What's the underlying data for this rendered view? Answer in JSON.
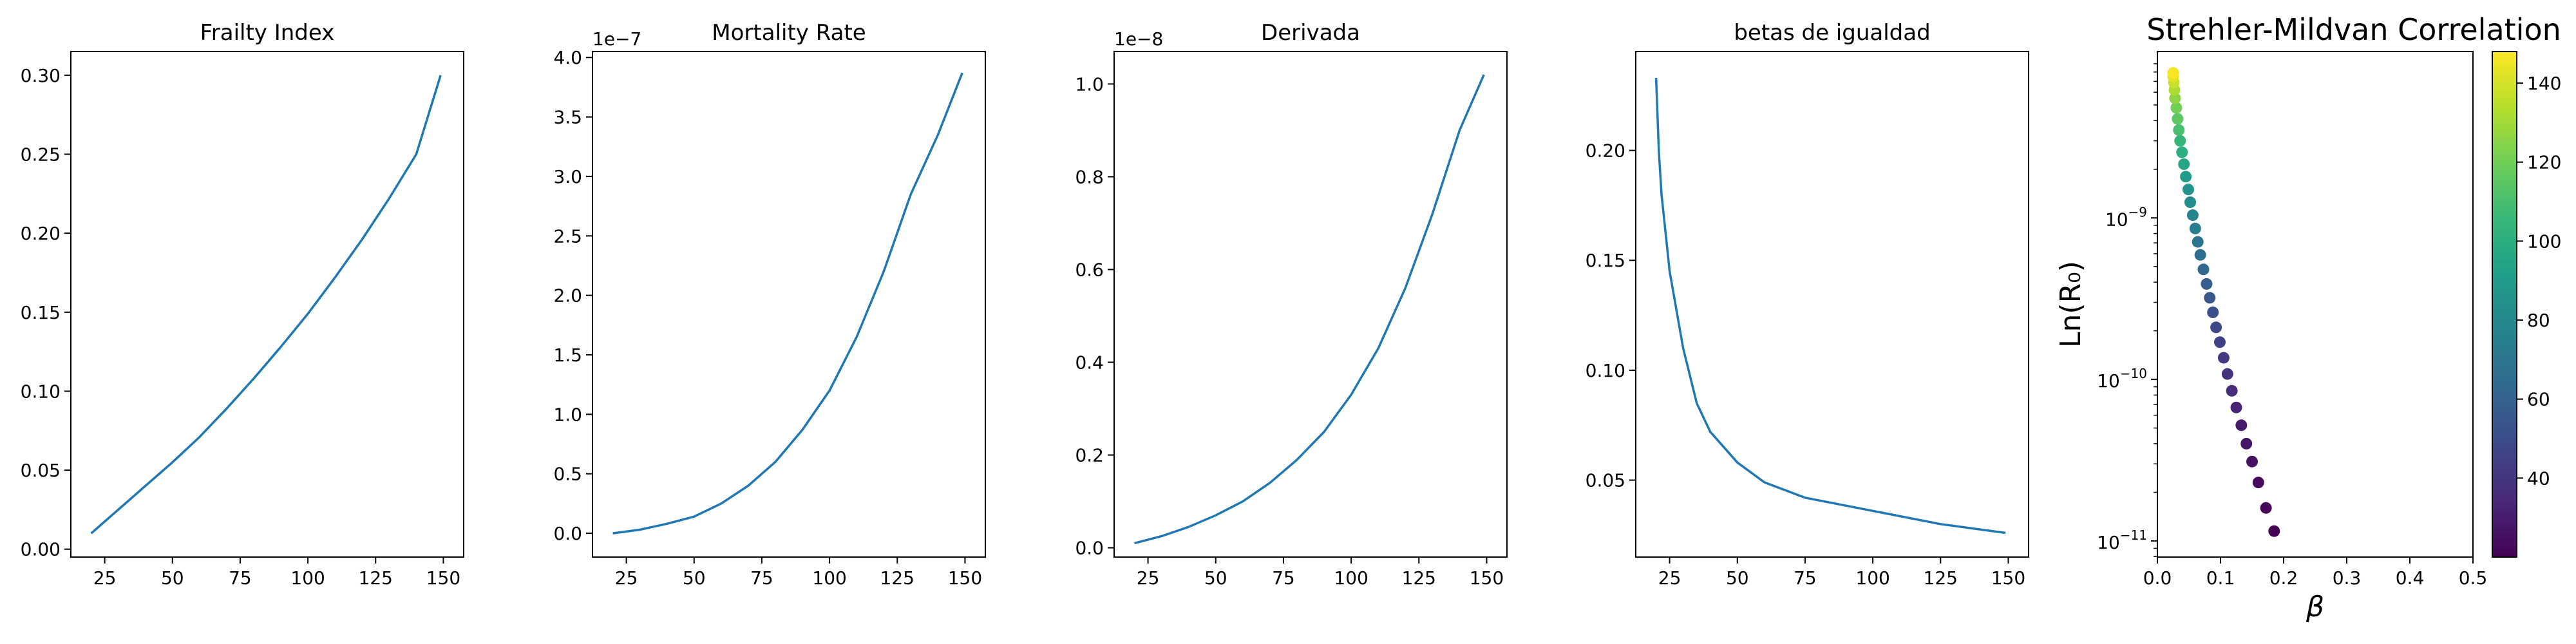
{
  "chart_data": [
    {
      "type": "line",
      "title": "Frailty Index",
      "xlabel": "",
      "ylabel": "",
      "xlim": [
        12.5,
        157.5
      ],
      "ylim": [
        -0.005,
        0.315
      ],
      "xticks": [
        25,
        50,
        75,
        100,
        125,
        150
      ],
      "yticks": [
        0.0,
        0.05,
        0.1,
        0.15,
        0.2,
        0.25,
        0.3
      ],
      "ytick_labels": [
        "0.00",
        "0.05",
        "0.10",
        "0.15",
        "0.20",
        "0.25",
        "0.30"
      ],
      "x": [
        20,
        30,
        40,
        50,
        60,
        70,
        80,
        90,
        100,
        110,
        120,
        130,
        140,
        149
      ],
      "y": [
        0.01,
        0.025,
        0.04,
        0.055,
        0.071,
        0.089,
        0.108,
        0.128,
        0.149,
        0.172,
        0.196,
        0.222,
        0.25,
        0.3
      ]
    },
    {
      "type": "line",
      "title": "Mortality Rate",
      "xlabel": "",
      "ylabel": "",
      "offset_text": "1e−7",
      "xlim": [
        12.5,
        157.5
      ],
      "ylim": [
        -0.2,
        4.05
      ],
      "xticks": [
        25,
        50,
        75,
        100,
        125,
        150
      ],
      "yticks": [
        0.0,
        0.5,
        1.0,
        1.5,
        2.0,
        2.5,
        3.0,
        3.5,
        4.0
      ],
      "ytick_labels": [
        "0.0",
        "0.5",
        "1.0",
        "1.5",
        "2.0",
        "2.5",
        "3.0",
        "3.5",
        "4.0"
      ],
      "x": [
        20,
        30,
        40,
        50,
        60,
        70,
        80,
        90,
        100,
        110,
        120,
        130,
        140,
        149
      ],
      "y": [
        0.0,
        0.03,
        0.08,
        0.14,
        0.25,
        0.4,
        0.6,
        0.87,
        1.2,
        1.65,
        2.2,
        2.85,
        3.35,
        3.87
      ]
    },
    {
      "type": "line",
      "title": "Derivada",
      "xlabel": "",
      "ylabel": "",
      "offset_text": "1e−8",
      "xlim": [
        12.5,
        157.5
      ],
      "ylim": [
        -0.02,
        1.07
      ],
      "xticks": [
        25,
        50,
        75,
        100,
        125,
        150
      ],
      "yticks": [
        0.0,
        0.2,
        0.4,
        0.6,
        0.8,
        1.0
      ],
      "ytick_labels": [
        "0.0",
        "0.2",
        "0.4",
        "0.6",
        "0.8",
        "1.0"
      ],
      "x": [
        20,
        30,
        40,
        50,
        60,
        70,
        80,
        90,
        100,
        110,
        120,
        130,
        140,
        149
      ],
      "y": [
        0.01,
        0.025,
        0.045,
        0.07,
        0.1,
        0.14,
        0.19,
        0.25,
        0.33,
        0.43,
        0.56,
        0.72,
        0.9,
        1.02
      ]
    },
    {
      "type": "line",
      "title": "betas de igualdad",
      "xlabel": "",
      "ylabel": "",
      "xlim": [
        12.5,
        157.5
      ],
      "ylim": [
        0.015,
        0.245
      ],
      "xticks": [
        25,
        50,
        75,
        100,
        125,
        150
      ],
      "yticks": [
        0.05,
        0.1,
        0.15,
        0.2
      ],
      "ytick_labels": [
        "0.05",
        "0.10",
        "0.15",
        "0.20"
      ],
      "x": [
        20,
        21,
        22,
        25,
        30,
        35,
        40,
        50,
        60,
        75,
        100,
        125,
        149
      ],
      "y": [
        0.233,
        0.2,
        0.18,
        0.145,
        0.11,
        0.085,
        0.072,
        0.058,
        0.049,
        0.042,
        0.036,
        0.03,
        0.026
      ]
    },
    {
      "type": "scatter",
      "title": "Strehler-Mildvan Correlation",
      "xlabel": "β",
      "ylabel": "Ln(R₀)",
      "xlim": [
        0.0,
        0.5
      ],
      "ylog": true,
      "ylim_log10": [
        -11.1,
        -7.97
      ],
      "xticks": [
        0.0,
        0.1,
        0.2,
        0.3,
        0.4,
        0.5
      ],
      "xtick_labels": [
        "0.0",
        "0.1",
        "0.2",
        "0.3",
        "0.4",
        "0.5"
      ],
      "yticks_exp": [
        -11,
        -10,
        -9
      ],
      "ytick_labels": [
        "10",
        "10",
        "10"
      ],
      "ytick_exps": [
        "−11",
        "−10",
        "−9"
      ],
      "colorbar": {
        "cmap": "viridis",
        "range": [
          20,
          148
        ],
        "ticks": [
          40,
          60,
          80,
          100,
          120,
          140
        ],
        "tick_labels": [
          "40",
          "60",
          "80",
          "100",
          "120",
          "140"
        ]
      },
      "points": [
        {
          "x": 0.185,
          "y": 1.15e-11,
          "c": 20
        },
        {
          "x": 0.172,
          "y": 1.6e-11,
          "c": 22
        },
        {
          "x": 0.16,
          "y": 2.3e-11,
          "c": 24
        },
        {
          "x": 0.15,
          "y": 3.1e-11,
          "c": 26
        },
        {
          "x": 0.141,
          "y": 4e-11,
          "c": 28
        },
        {
          "x": 0.133,
          "y": 5.2e-11,
          "c": 30
        },
        {
          "x": 0.125,
          "y": 6.7e-11,
          "c": 33
        },
        {
          "x": 0.118,
          "y": 8.5e-11,
          "c": 36
        },
        {
          "x": 0.111,
          "y": 1.08e-10,
          "c": 39
        },
        {
          "x": 0.105,
          "y": 1.36e-10,
          "c": 42
        },
        {
          "x": 0.099,
          "y": 1.7e-10,
          "c": 45
        },
        {
          "x": 0.093,
          "y": 2.1e-10,
          "c": 48
        },
        {
          "x": 0.088,
          "y": 2.6e-10,
          "c": 51
        },
        {
          "x": 0.083,
          "y": 3.2e-10,
          "c": 55
        },
        {
          "x": 0.078,
          "y": 3.9e-10,
          "c": 58
        },
        {
          "x": 0.073,
          "y": 4.8e-10,
          "c": 62
        },
        {
          "x": 0.068,
          "y": 5.9e-10,
          "c": 66
        },
        {
          "x": 0.064,
          "y": 7.1e-10,
          "c": 70
        },
        {
          "x": 0.06,
          "y": 8.6e-10,
          "c": 74
        },
        {
          "x": 0.056,
          "y": 1.04e-09,
          "c": 78
        },
        {
          "x": 0.052,
          "y": 1.25e-09,
          "c": 82
        },
        {
          "x": 0.049,
          "y": 1.5e-09,
          "c": 86
        },
        {
          "x": 0.045,
          "y": 1.8e-09,
          "c": 90
        },
        {
          "x": 0.042,
          "y": 2.15e-09,
          "c": 95
        },
        {
          "x": 0.039,
          "y": 2.55e-09,
          "c": 100
        },
        {
          "x": 0.036,
          "y": 3e-09,
          "c": 105
        },
        {
          "x": 0.034,
          "y": 3.5e-09,
          "c": 110
        },
        {
          "x": 0.032,
          "y": 4.1e-09,
          "c": 115
        },
        {
          "x": 0.03,
          "y": 4.8e-09,
          "c": 120
        },
        {
          "x": 0.028,
          "y": 5.5e-09,
          "c": 126
        },
        {
          "x": 0.027,
          "y": 6.2e-09,
          "c": 132
        },
        {
          "x": 0.026,
          "y": 6.9e-09,
          "c": 138
        },
        {
          "x": 0.025,
          "y": 7.5e-09,
          "c": 143
        },
        {
          "x": 0.025,
          "y": 7.9e-09,
          "c": 147
        }
      ]
    }
  ],
  "colors": {
    "line": "#1f77b4",
    "axis": "#000000",
    "viridis": [
      "#440154",
      "#482878",
      "#3e4989",
      "#31688e",
      "#26828e",
      "#1f9e89",
      "#35b779",
      "#6ece58",
      "#b5de2b",
      "#fde725"
    ]
  }
}
